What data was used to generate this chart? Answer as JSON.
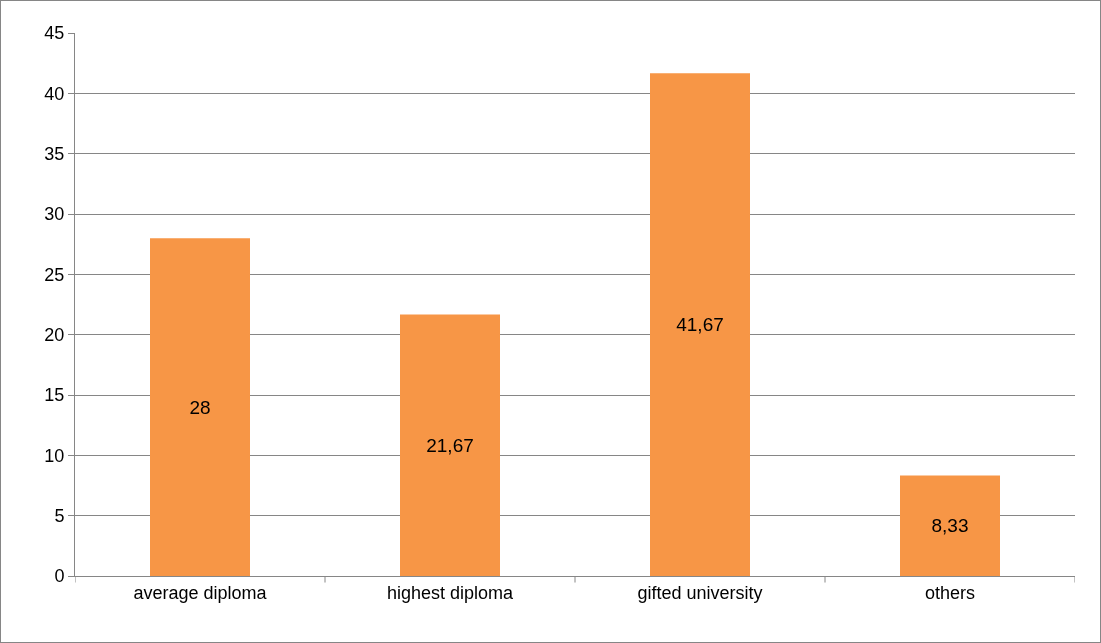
{
  "chart_data": {
    "type": "bar",
    "categories": [
      "average diploma",
      "highest diploma",
      "gifted university",
      "others"
    ],
    "values": [
      28,
      21.67,
      41.67,
      8.33
    ],
    "value_labels": [
      "28",
      "21,67",
      "41,67",
      "8,33"
    ],
    "color": "#f79646",
    "ylim": [
      0,
      45
    ],
    "yticks": [
      0,
      5,
      10,
      15,
      20,
      25,
      30,
      35,
      40,
      45
    ],
    "grid": "y"
  }
}
